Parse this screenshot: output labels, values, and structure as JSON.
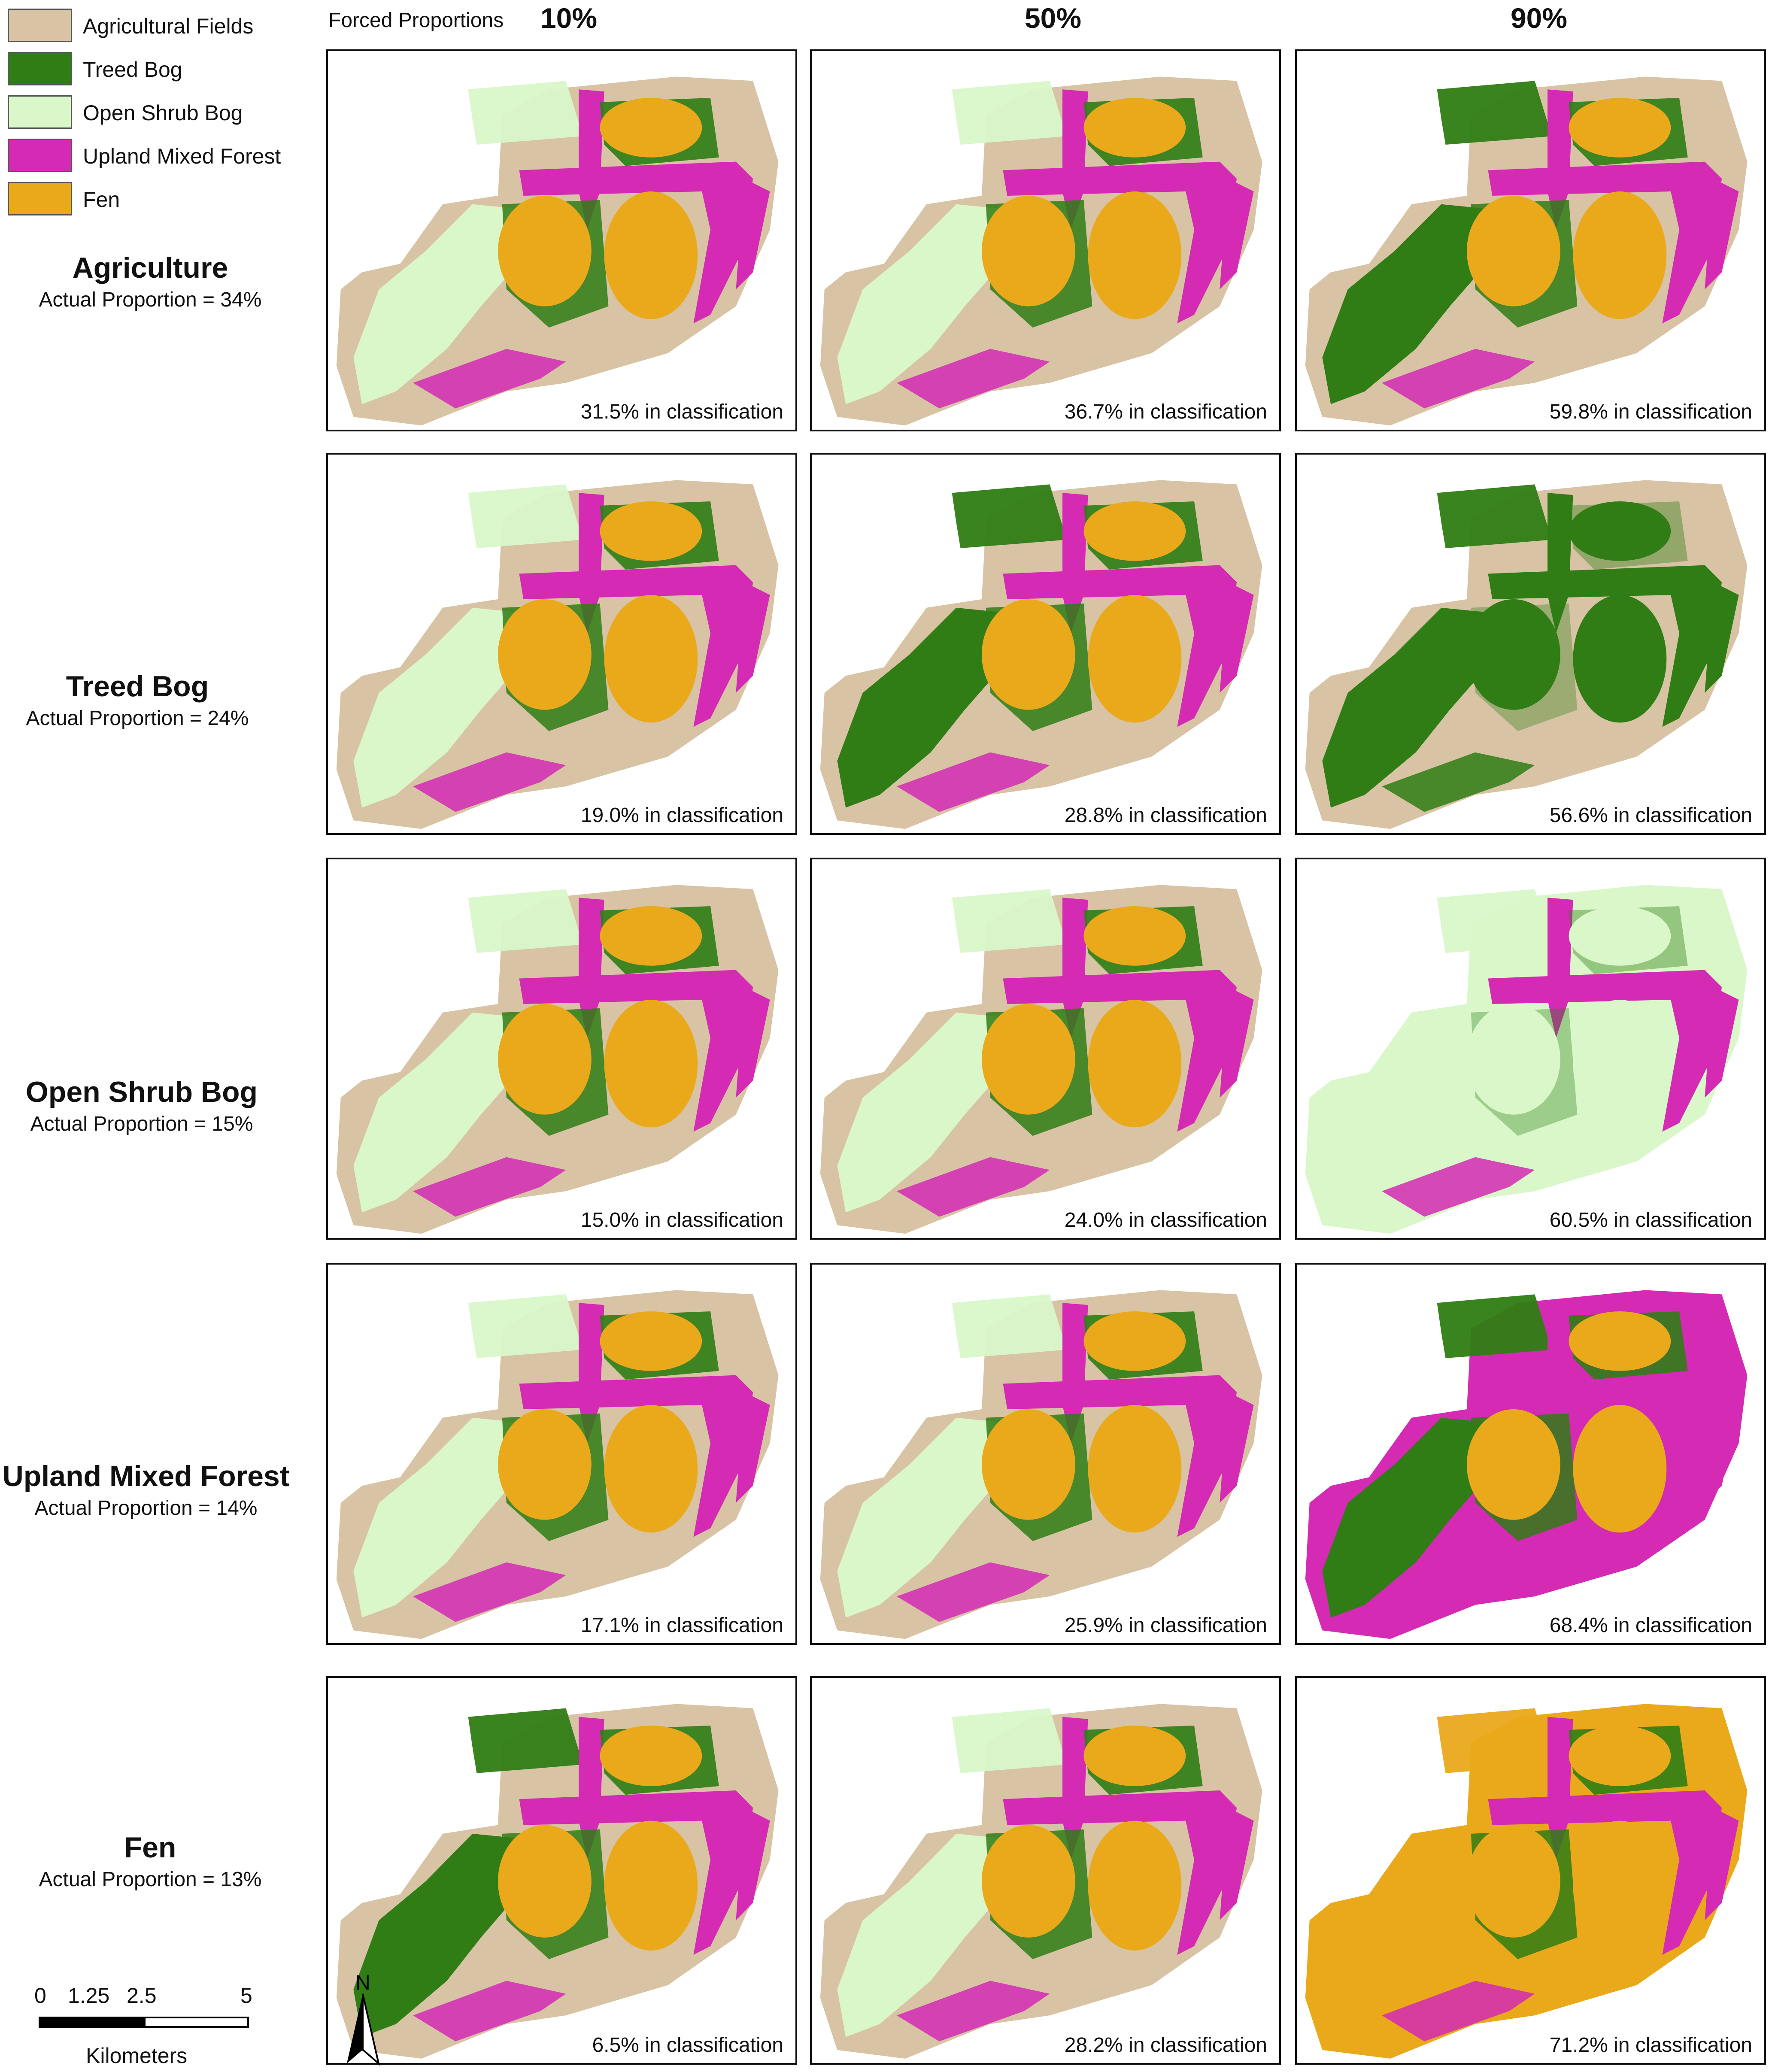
{
  "legend": [
    {
      "label": "Agricultural Fields",
      "color": "#d8c3a5"
    },
    {
      "label": "Treed Bog",
      "color": "#2f7d14"
    },
    {
      "label": "Open Shrub Bog",
      "color": "#d9f7c9"
    },
    {
      "label": "Upland Mixed Forest",
      "color": "#d42ab4"
    },
    {
      "label": "Fen",
      "color": "#eaa91b"
    }
  ],
  "forced_proportions_label": "Forced Proportions",
  "columns": [
    "10%",
    "50%",
    "90%"
  ],
  "rows": [
    {
      "title": "Agriculture",
      "subtitle": "Actual Proportion = 34%",
      "captions": [
        "31.5% in classification",
        "36.7% in classification",
        "59.8% in classification"
      ]
    },
    {
      "title": "Treed Bog",
      "subtitle": "Actual Proportion = 24%",
      "captions": [
        "19.0% in classification",
        "28.8% in classification",
        "56.6% in classification"
      ]
    },
    {
      "title": "Open Shrub Bog",
      "subtitle": "Actual Proportion = 15%",
      "captions": [
        "15.0% in classification",
        "24.0% in classification",
        "60.5% in classification"
      ]
    },
    {
      "title": "Upland Mixed Forest",
      "subtitle": "Actual Proportion = 14%",
      "captions": [
        "17.1% in classification",
        "25.9% in classification",
        "68.4% in classification"
      ]
    },
    {
      "title": "Fen",
      "subtitle": "Actual Proportion = 13%",
      "captions": [
        "6.5% in classification",
        "28.2% in classification",
        "71.2% in classification"
      ]
    }
  ],
  "scale": {
    "ticks": [
      "0",
      "1.25",
      "2.5",
      "5"
    ],
    "unit": "Kilometers"
  },
  "north_label": "N"
}
